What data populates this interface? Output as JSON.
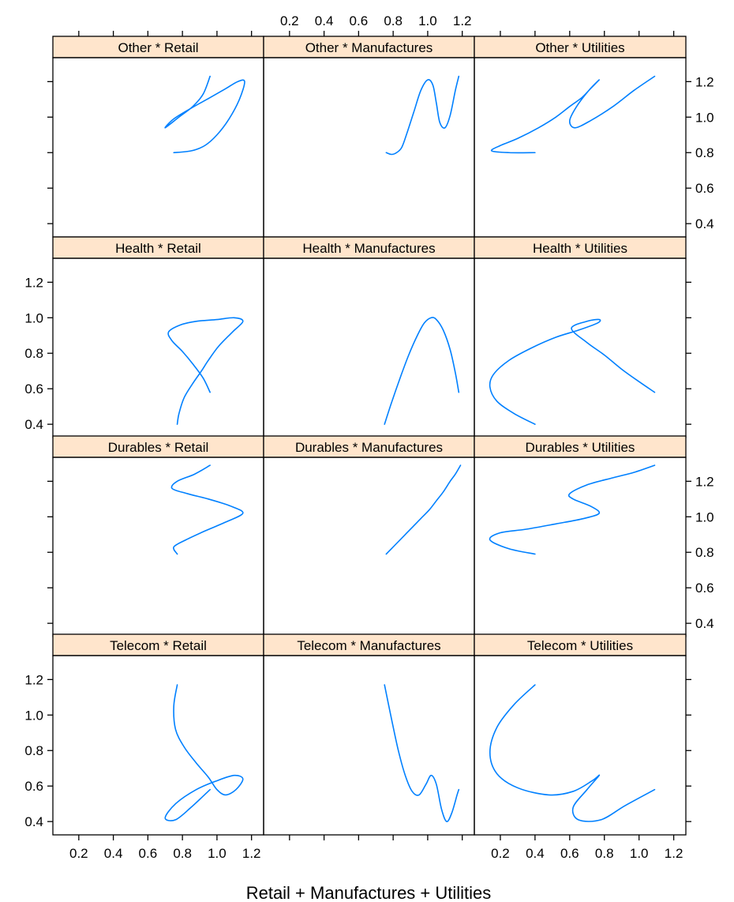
{
  "chart_data": {
    "type": "line",
    "title": "",
    "xlabel": "Retail + Manufactures + Utilities",
    "ylabel": "",
    "xlim": [
      0.05,
      1.27
    ],
    "ylim": [
      0.325,
      1.335
    ],
    "x_ticks": [
      0.2,
      0.4,
      0.6,
      0.8,
      1.0,
      1.2
    ],
    "x_tick_labels": [
      "0.2",
      "0.4",
      "0.6",
      "0.8",
      "1.0",
      "1.2"
    ],
    "y_ticks": [
      0.4,
      0.6,
      0.8,
      1.0,
      1.2
    ],
    "y_tick_labels": [
      "0.4",
      "0.6",
      "0.8",
      "1.0",
      "1.2"
    ],
    "grid": false,
    "legend": "none",
    "color": "#0080ff",
    "strip_color": "#ffe5cc",
    "layout": {
      "columns": 3,
      "rows": 4
    },
    "column_groups": [
      "Retail",
      "Manufactures",
      "Utilities"
    ],
    "row_groups": [
      "Other",
      "Health",
      "Durables",
      "Telecom"
    ],
    "panels": [
      {
        "label": "Other * Retail",
        "row": 0,
        "col": 0,
        "x": [
          0.75,
          0.85,
          0.93,
          1.0,
          1.07,
          1.13,
          1.16,
          1.12,
          1.05,
          0.96,
          0.85,
          0.75,
          0.7,
          0.78,
          0.86,
          0.92,
          0.96
        ],
        "y": [
          0.8,
          0.81,
          0.84,
          0.9,
          0.99,
          1.1,
          1.2,
          1.2,
          1.16,
          1.11,
          1.05,
          0.99,
          0.94,
          1.0,
          1.06,
          1.13,
          1.23
        ]
      },
      {
        "label": "Other * Manufactures",
        "row": 0,
        "col": 1,
        "x": [
          0.76,
          0.79,
          0.82,
          0.85,
          0.88,
          0.92,
          0.96,
          1.0,
          1.03,
          1.05,
          1.07,
          1.1,
          1.13,
          1.16,
          1.18
        ],
        "y": [
          0.8,
          0.79,
          0.8,
          0.83,
          0.91,
          1.03,
          1.15,
          1.21,
          1.18,
          1.08,
          0.97,
          0.94,
          1.01,
          1.15,
          1.23
        ]
      },
      {
        "label": "Other * Utilities",
        "row": 0,
        "col": 1.999,
        "x": [
          0.4,
          0.25,
          0.15,
          0.2,
          0.3,
          0.42,
          0.52,
          0.6,
          0.67,
          0.72,
          0.77,
          0.71,
          0.64,
          0.6,
          0.63,
          0.72,
          0.85,
          0.97,
          1.09
        ],
        "y": [
          0.8,
          0.8,
          0.81,
          0.84,
          0.88,
          0.94,
          1.0,
          1.06,
          1.11,
          1.16,
          1.21,
          1.15,
          1.06,
          0.98,
          0.94,
          0.98,
          1.06,
          1.15,
          1.23
        ]
      },
      {
        "label": "Health * Retail",
        "row": 1,
        "col": 0,
        "x": [
          0.77,
          0.78,
          0.81,
          0.86,
          0.91,
          0.95,
          1.01,
          1.09,
          1.15,
          1.1,
          1.0,
          0.88,
          0.79,
          0.72,
          0.74,
          0.8,
          0.86,
          0.92,
          0.96
        ],
        "y": [
          0.4,
          0.46,
          0.55,
          0.63,
          0.7,
          0.76,
          0.84,
          0.92,
          0.98,
          1.0,
          0.99,
          0.98,
          0.96,
          0.92,
          0.87,
          0.81,
          0.74,
          0.66,
          0.58
        ]
      },
      {
        "label": "Health * Manufactures",
        "row": 1,
        "col": 1,
        "x": [
          0.75,
          0.79,
          0.84,
          0.89,
          0.94,
          0.98,
          1.02,
          1.05,
          1.09,
          1.13,
          1.16,
          1.18
        ],
        "y": [
          0.4,
          0.52,
          0.66,
          0.79,
          0.9,
          0.97,
          1.0,
          0.99,
          0.93,
          0.82,
          0.69,
          0.58
        ]
      },
      {
        "label": "Health * Utilities",
        "row": 1,
        "col": 2,
        "x": [
          0.4,
          0.28,
          0.18,
          0.14,
          0.16,
          0.25,
          0.38,
          0.52,
          0.65,
          0.76,
          0.77,
          0.7,
          0.61,
          0.7,
          0.8,
          0.9,
          1.0,
          1.09
        ],
        "y": [
          0.4,
          0.46,
          0.53,
          0.61,
          0.68,
          0.76,
          0.83,
          0.89,
          0.93,
          0.97,
          0.99,
          0.98,
          0.94,
          0.86,
          0.79,
          0.71,
          0.64,
          0.58
        ]
      },
      {
        "label": "Durables * Retail",
        "row": 2,
        "col": 0,
        "x": [
          0.77,
          0.75,
          0.82,
          0.93,
          1.05,
          1.15,
          1.08,
          0.95,
          0.83,
          0.74,
          0.77,
          0.87,
          0.96
        ],
        "y": [
          0.79,
          0.83,
          0.87,
          0.92,
          0.97,
          1.02,
          1.06,
          1.1,
          1.13,
          1.16,
          1.2,
          1.24,
          1.29
        ]
      },
      {
        "label": "Durables * Manufactures",
        "row": 2,
        "col": 1,
        "x": [
          0.76,
          0.81,
          0.86,
          0.91,
          0.96,
          1.01,
          1.05,
          1.09,
          1.13,
          1.16,
          1.19
        ],
        "y": [
          0.79,
          0.84,
          0.89,
          0.94,
          0.99,
          1.04,
          1.09,
          1.14,
          1.2,
          1.24,
          1.29
        ]
      },
      {
        "label": "Durables * Utilities",
        "row": 2,
        "col": 2,
        "x": [
          0.4,
          0.25,
          0.14,
          0.2,
          0.35,
          0.52,
          0.68,
          0.77,
          0.72,
          0.62,
          0.6,
          0.7,
          0.85,
          0.97,
          1.09
        ],
        "y": [
          0.79,
          0.82,
          0.87,
          0.91,
          0.93,
          0.96,
          0.99,
          1.02,
          1.06,
          1.1,
          1.13,
          1.18,
          1.22,
          1.25,
          1.29
        ]
      },
      {
        "label": "Telecom * Retail",
        "row": 3,
        "col": 0,
        "x": [
          0.77,
          0.75,
          0.76,
          0.81,
          0.88,
          0.95,
          1.0,
          1.05,
          1.11,
          1.15,
          1.1,
          1.0,
          0.88,
          0.76,
          0.7,
          0.76,
          0.85,
          0.96
        ],
        "y": [
          1.17,
          1.05,
          0.92,
          0.82,
          0.73,
          0.65,
          0.58,
          0.55,
          0.58,
          0.64,
          0.66,
          0.63,
          0.58,
          0.5,
          0.42,
          0.41,
          0.48,
          0.58
        ]
      },
      {
        "label": "Telecom * Manufactures",
        "row": 3,
        "col": 1,
        "x": [
          0.75,
          0.79,
          0.83,
          0.87,
          0.91,
          0.95,
          0.99,
          1.02,
          1.05,
          1.08,
          1.11,
          1.14,
          1.17,
          1.18
        ],
        "y": [
          1.17,
          0.98,
          0.8,
          0.66,
          0.57,
          0.55,
          0.61,
          0.66,
          0.61,
          0.47,
          0.4,
          0.45,
          0.55,
          0.58
        ]
      },
      {
        "label": "Telecom * Utilities",
        "row": 3,
        "col": 2,
        "x": [
          0.4,
          0.28,
          0.18,
          0.14,
          0.18,
          0.3,
          0.48,
          0.62,
          0.73,
          0.77,
          0.7,
          0.62,
          0.65,
          0.78,
          0.92,
          1.09
        ],
        "y": [
          1.17,
          1.06,
          0.93,
          0.79,
          0.67,
          0.59,
          0.55,
          0.57,
          0.63,
          0.66,
          0.58,
          0.48,
          0.41,
          0.41,
          0.49,
          0.58
        ]
      }
    ]
  }
}
